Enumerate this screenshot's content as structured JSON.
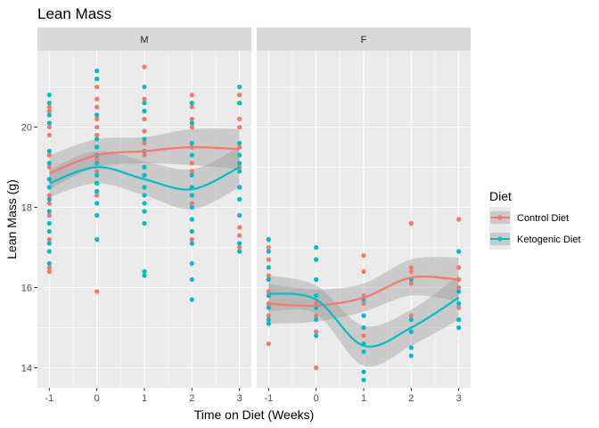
{
  "colors": {
    "control": "#f8766d",
    "keto": "#00bfc4",
    "ribbon": "#999999",
    "panel_bg": "#ebebeb",
    "strip_bg": "#d9d9d9",
    "grid": "#ffffff"
  },
  "chart_data": {
    "type": "scatter",
    "title": "Lean Mass",
    "xlabel": "Time on Diet (Weeks)",
    "ylabel": "Lean Mass (g)",
    "x_ticks": [
      "-1",
      "0",
      "1",
      "2",
      "3"
    ],
    "y_ticks": [
      "14",
      "16",
      "18",
      "20"
    ],
    "xlim": [
      -1.25,
      3.25
    ],
    "ylim": [
      13.5,
      21.9
    ],
    "legend": {
      "title": "Diet",
      "position": "right",
      "entries": [
        {
          "name": "Control Diet",
          "color_key": "control"
        },
        {
          "name": "Ketogenic Diet",
          "color_key": "keto"
        }
      ]
    },
    "panels": [
      {
        "label": "M",
        "points": {
          "control": [
            [
              -1,
              16.4
            ],
            [
              -1,
              16.5
            ],
            [
              -1,
              17.2
            ],
            [
              -1,
              17.8
            ],
            [
              -1,
              18.1
            ],
            [
              -1,
              18.3
            ],
            [
              -1,
              18.7
            ],
            [
              -1,
              19.0
            ],
            [
              -1,
              19.3
            ],
            [
              -1,
              19.8
            ],
            [
              -1,
              20.0
            ],
            [
              -1,
              20.4
            ],
            [
              -1,
              20.5
            ],
            [
              0,
              15.9
            ],
            [
              0,
              18.3
            ],
            [
              0,
              18.6
            ],
            [
              0,
              18.9
            ],
            [
              0,
              19.2
            ],
            [
              0,
              19.5
            ],
            [
              0,
              19.8
            ],
            [
              0,
              20.0
            ],
            [
              0,
              20.2
            ],
            [
              0,
              20.5
            ],
            [
              0,
              20.7
            ],
            [
              0,
              21.0
            ],
            [
              0,
              21.2
            ],
            [
              1,
              17.9
            ],
            [
              1,
              18.5
            ],
            [
              1,
              19.0
            ],
            [
              1,
              19.3
            ],
            [
              1,
              19.6
            ],
            [
              1,
              19.9
            ],
            [
              1,
              20.2
            ],
            [
              1,
              20.4
            ],
            [
              1,
              20.7
            ],
            [
              1,
              21.5
            ],
            [
              2,
              17.2
            ],
            [
              2,
              18.1
            ],
            [
              2,
              18.9
            ],
            [
              2,
              19.1
            ],
            [
              2,
              19.5
            ],
            [
              2,
              20.0
            ],
            [
              2,
              20.2
            ],
            [
              2,
              20.5
            ],
            [
              2,
              20.8
            ],
            [
              3,
              17.0
            ],
            [
              3,
              17.3
            ],
            [
              3,
              17.5
            ],
            [
              3,
              18.5
            ],
            [
              3,
              19.0
            ],
            [
              3,
              19.5
            ],
            [
              3,
              20.0
            ],
            [
              3,
              20.2
            ],
            [
              3,
              20.6
            ],
            [
              3,
              20.8
            ]
          ],
          "keto": [
            [
              -1,
              16.6
            ],
            [
              -1,
              16.9
            ],
            [
              -1,
              17.1
            ],
            [
              -1,
              17.4
            ],
            [
              -1,
              17.6
            ],
            [
              -1,
              17.9
            ],
            [
              -1,
              18.2
            ],
            [
              -1,
              18.5
            ],
            [
              -1,
              18.7
            ],
            [
              -1,
              19.1
            ],
            [
              -1,
              19.4
            ],
            [
              -1,
              20.1
            ],
            [
              -1,
              20.3
            ],
            [
              -1,
              20.6
            ],
            [
              -1,
              20.8
            ],
            [
              0,
              17.2
            ],
            [
              0,
              17.8
            ],
            [
              0,
              18.1
            ],
            [
              0,
              18.4
            ],
            [
              0,
              18.6
            ],
            [
              0,
              18.8
            ],
            [
              0,
              19.1
            ],
            [
              0,
              19.3
            ],
            [
              0,
              19.5
            ],
            [
              0,
              19.7
            ],
            [
              0,
              20.3
            ],
            [
              0,
              21.2
            ],
            [
              0,
              21.4
            ],
            [
              1,
              16.3
            ],
            [
              1,
              16.4
            ],
            [
              1,
              17.6
            ],
            [
              1,
              17.9
            ],
            [
              1,
              18.1
            ],
            [
              1,
              18.3
            ],
            [
              1,
              18.5
            ],
            [
              1,
              18.8
            ],
            [
              1,
              19.0
            ],
            [
              1,
              19.4
            ],
            [
              1,
              19.7
            ],
            [
              1,
              20.4
            ],
            [
              1,
              20.6
            ],
            [
              1,
              21.0
            ],
            [
              2,
              15.7
            ],
            [
              2,
              16.2
            ],
            [
              2,
              16.6
            ],
            [
              2,
              17.1
            ],
            [
              2,
              17.4
            ],
            [
              2,
              17.7
            ],
            [
              2,
              18.0
            ],
            [
              2,
              18.3
            ],
            [
              2,
              18.5
            ],
            [
              2,
              18.8
            ],
            [
              2,
              19.3
            ],
            [
              2,
              19.6
            ],
            [
              2,
              20.1
            ],
            [
              2,
              20.6
            ],
            [
              3,
              16.9
            ],
            [
              3,
              17.1
            ],
            [
              3,
              17.8
            ],
            [
              3,
              18.2
            ],
            [
              3,
              18.5
            ],
            [
              3,
              18.9
            ],
            [
              3,
              19.1
            ],
            [
              3,
              19.3
            ],
            [
              3,
              19.6
            ],
            [
              3,
              20.6
            ],
            [
              3,
              21.0
            ]
          ]
        },
        "smooth": {
          "control": {
            "x": [
              -1,
              0,
              1,
              2,
              3
            ],
            "y": [
              18.85,
              19.3,
              19.4,
              19.5,
              19.45
            ],
            "lower": [
              18.45,
              19.0,
              19.1,
              19.05,
              18.95
            ],
            "upper": [
              19.3,
              19.7,
              19.75,
              19.95,
              19.95
            ]
          },
          "keto": {
            "x": [
              -1,
              0,
              1,
              2,
              3
            ],
            "y": [
              18.6,
              19.0,
              18.7,
              18.45,
              19.0
            ],
            "lower": [
              18.25,
              18.6,
              18.3,
              17.95,
              18.5
            ],
            "upper": [
              18.95,
              19.4,
              19.15,
              18.95,
              19.5
            ]
          }
        }
      },
      {
        "label": "F",
        "points": {
          "control": [
            [
              -1,
              14.6
            ],
            [
              -1,
              15.3
            ],
            [
              -1,
              15.6
            ],
            [
              -1,
              15.9
            ],
            [
              -1,
              16.3
            ],
            [
              -1,
              16.7
            ],
            [
              -1,
              17.0
            ],
            [
              0,
              14.0
            ],
            [
              0,
              14.9
            ],
            [
              0,
              15.3
            ],
            [
              0,
              15.6
            ],
            [
              0,
              16.2
            ],
            [
              0,
              16.7
            ],
            [
              1,
              14.8
            ],
            [
              1,
              15.3
            ],
            [
              1,
              15.6
            ],
            [
              1,
              15.8
            ],
            [
              1,
              16.4
            ],
            [
              1,
              16.8
            ],
            [
              2,
              15.3
            ],
            [
              2,
              16.1
            ],
            [
              2,
              16.4
            ],
            [
              2,
              16.5
            ],
            [
              2,
              17.6
            ],
            [
              3,
              15.2
            ],
            [
              3,
              15.5
            ],
            [
              3,
              16.0
            ],
            [
              3,
              16.2
            ],
            [
              3,
              16.5
            ],
            [
              3,
              17.7
            ]
          ],
          "keto": [
            [
              -1,
              15.1
            ],
            [
              -1,
              15.2
            ],
            [
              -1,
              15.5
            ],
            [
              -1,
              15.8
            ],
            [
              -1,
              16.2
            ],
            [
              -1,
              16.5
            ],
            [
              -1,
              16.9
            ],
            [
              -1,
              17.2
            ],
            [
              0,
              14.8
            ],
            [
              0,
              15.2
            ],
            [
              0,
              15.5
            ],
            [
              0,
              15.8
            ],
            [
              0,
              16.2
            ],
            [
              0,
              16.7
            ],
            [
              0,
              17.0
            ],
            [
              1,
              13.7
            ],
            [
              1,
              13.9
            ],
            [
              1,
              14.4
            ],
            [
              1,
              14.6
            ],
            [
              1,
              15.0
            ],
            [
              1,
              15.3
            ],
            [
              1,
              15.7
            ],
            [
              2,
              14.3
            ],
            [
              2,
              14.5
            ],
            [
              2,
              14.9
            ],
            [
              2,
              15.2
            ],
            [
              2,
              16.2
            ],
            [
              3,
              15.0
            ],
            [
              3,
              15.2
            ],
            [
              3,
              15.6
            ],
            [
              3,
              15.9
            ],
            [
              3,
              16.9
            ]
          ]
        },
        "smooth": {
          "control": {
            "x": [
              -1,
              0,
              1,
              2,
              3
            ],
            "y": [
              15.6,
              15.55,
              15.75,
              16.25,
              16.2
            ],
            "lower": [
              15.1,
              15.15,
              15.4,
              15.8,
              15.65
            ],
            "upper": [
              16.1,
              15.95,
              16.1,
              16.7,
              16.75
            ]
          },
          "keto": {
            "x": [
              -1,
              0,
              1,
              2,
              3
            ],
            "y": [
              15.85,
              15.7,
              14.55,
              15.0,
              15.75
            ],
            "lower": [
              15.4,
              15.35,
              14.05,
              14.55,
              15.2
            ],
            "upper": [
              16.3,
              16.05,
              15.05,
              15.45,
              16.3
            ]
          }
        }
      }
    ]
  }
}
